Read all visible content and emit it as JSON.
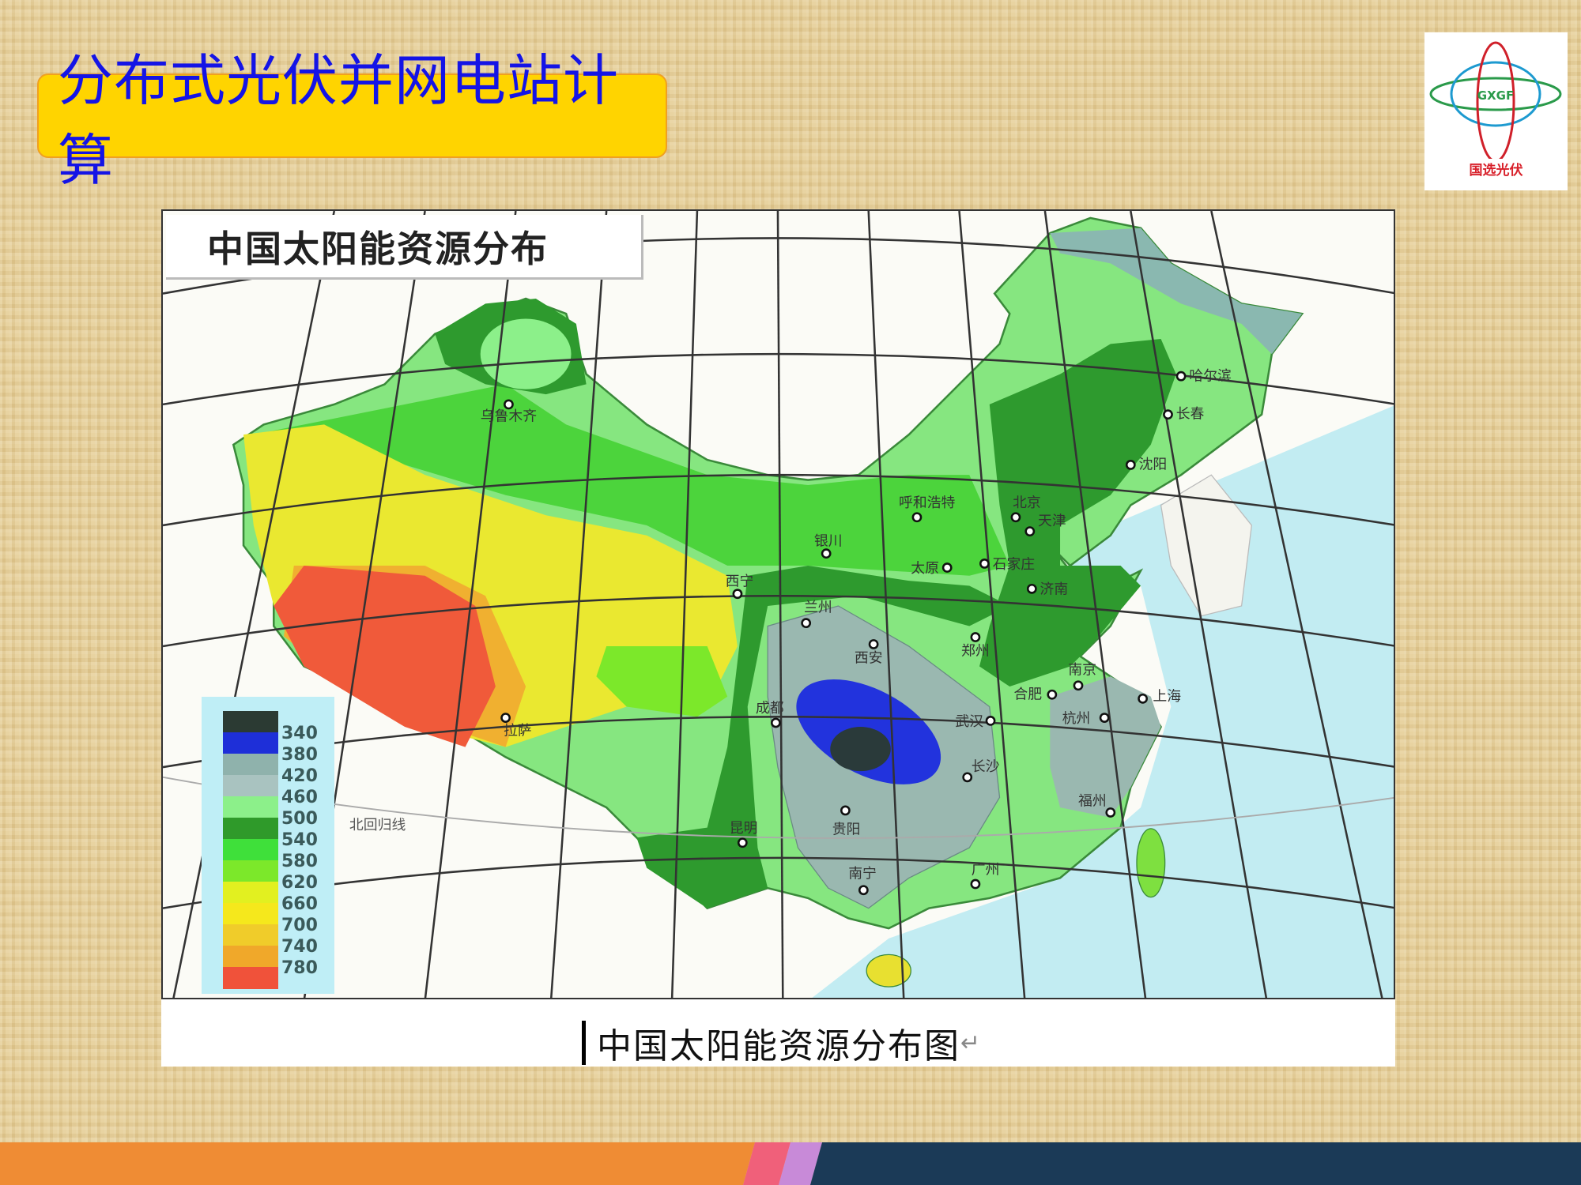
{
  "slide": {
    "title": "分布式光伏并网电站计算",
    "logo": {
      "mark_text": "GXGF",
      "name": "国选光伏"
    }
  },
  "map": {
    "title": "中国太阳能资源分布",
    "caption": "中国太阳能资源分布图",
    "return_mark": "↵",
    "tropic_label": "北回归线",
    "legend": [
      {
        "value": "340",
        "color": "#2b3a33"
      },
      {
        "value": "380",
        "color": "#1e2fd8"
      },
      {
        "value": "420",
        "color": "#8fb2ac"
      },
      {
        "value": "460",
        "color": "#a9c3c0"
      },
      {
        "value": "500",
        "color": "#8cf08a"
      },
      {
        "value": "540",
        "color": "#2f9a2a"
      },
      {
        "value": "580",
        "color": "#3fe03a"
      },
      {
        "value": "620",
        "color": "#7ce82a"
      },
      {
        "value": "660",
        "color": "#e2f020"
      },
      {
        "value": "700",
        "color": "#f5e81c"
      },
      {
        "value": "740",
        "color": "#f0cc2a"
      },
      {
        "value": "780",
        "color": "#f0a82a"
      },
      {
        "value": "",
        "color": "#f0523a"
      }
    ],
    "cities": [
      "乌鲁木齐",
      "哈尔滨",
      "长春",
      "沈阳",
      "呼和浩特",
      "北京",
      "天津",
      "银川",
      "太原",
      "石家庄",
      "济南",
      "西宁",
      "兰州",
      "西安",
      "郑州",
      "合肥",
      "南京",
      "上海",
      "成都",
      "武汉",
      "杭州",
      "长沙",
      "拉萨",
      "福州",
      "贵阳",
      "昆明",
      "南宁",
      "广州"
    ]
  },
  "colors": {
    "title_bg": "#ffd400",
    "title_text": "#1414e6",
    "footer_orange": "#ef8c34",
    "footer_navy": "#1b3a57"
  }
}
